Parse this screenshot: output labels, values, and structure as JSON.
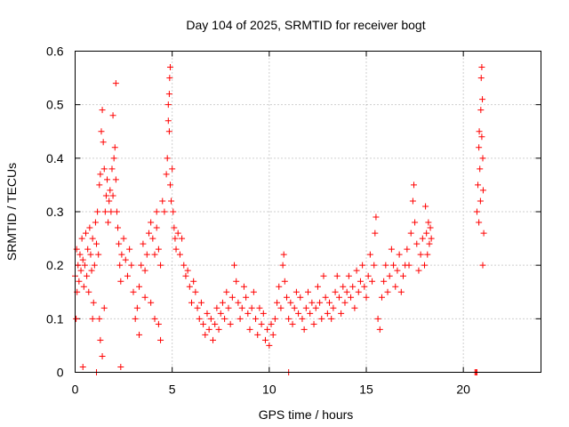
{
  "chart_data": {
    "type": "scatter",
    "title": "Day 104 of 2025, SRMTID for receiver bogt",
    "xlabel": "GPS time / hours",
    "ylabel": "SRMTID / TECUs",
    "xlim": [
      0,
      24
    ],
    "ylim": [
      0,
      0.6
    ],
    "x_ticks": [
      0,
      5,
      10,
      15,
      20
    ],
    "y_ticks": [
      0,
      0.1,
      0.2,
      0.3,
      0.4,
      0.5,
      0.6
    ],
    "x_tick_labels": [
      "0",
      "5",
      "10",
      "15",
      "20"
    ],
    "y_tick_labels": [
      "0",
      "0.1",
      "0.2",
      "0.3",
      "0.4",
      "0.5",
      "0.6"
    ],
    "grid": true,
    "marker": "plus",
    "series_color": "#ff0000",
    "series": [
      {
        "name": "SRMTID",
        "points": [
          [
            0.0,
            0.18
          ],
          [
            0.05,
            0.1
          ],
          [
            0.08,
            0.23
          ],
          [
            0.1,
            0.15
          ],
          [
            0.15,
            0.2
          ],
          [
            0.2,
            0.17
          ],
          [
            0.25,
            0.22
          ],
          [
            0.3,
            0.19
          ],
          [
            0.35,
            0.25
          ],
          [
            0.4,
            0.21
          ],
          [
            0.45,
            0.16
          ],
          [
            0.5,
            0.2
          ],
          [
            0.55,
            0.26
          ],
          [
            0.6,
            0.18
          ],
          [
            0.65,
            0.23
          ],
          [
            0.7,
            0.15
          ],
          [
            0.75,
            0.27
          ],
          [
            0.8,
            0.22
          ],
          [
            0.85,
            0.19
          ],
          [
            0.9,
            0.25
          ],
          [
            0.95,
            0.13
          ],
          [
            1.0,
            0.2
          ],
          [
            1.05,
            0.28
          ],
          [
            1.1,
            0.24
          ],
          [
            1.15,
            0.3
          ],
          [
            1.2,
            0.22
          ],
          [
            1.25,
            0.35
          ],
          [
            1.3,
            0.37
          ],
          [
            1.35,
            0.45
          ],
          [
            1.4,
            0.49
          ],
          [
            1.45,
            0.43
          ],
          [
            1.5,
            0.38
          ],
          [
            1.55,
            0.3
          ],
          [
            1.6,
            0.33
          ],
          [
            1.65,
            0.36
          ],
          [
            1.7,
            0.28
          ],
          [
            1.75,
            0.32
          ],
          [
            1.8,
            0.34
          ],
          [
            1.85,
            0.3
          ],
          [
            1.9,
            0.38
          ],
          [
            1.95,
            0.33
          ],
          [
            2.0,
            0.4
          ],
          [
            2.05,
            0.42
          ],
          [
            2.1,
            0.36
          ],
          [
            2.15,
            0.3
          ],
          [
            2.2,
            0.27
          ],
          [
            2.25,
            0.24
          ],
          [
            2.3,
            0.2
          ],
          [
            2.35,
            0.17
          ],
          [
            2.4,
            0.22
          ],
          [
            2.1,
            0.54
          ],
          [
            1.95,
            0.48
          ],
          [
            1.25,
            0.1
          ],
          [
            1.3,
            0.06
          ],
          [
            1.4,
            0.03
          ],
          [
            1.1,
            0.0
          ],
          [
            0.4,
            0.01
          ],
          [
            2.35,
            0.01
          ],
          [
            0.9,
            0.1
          ],
          [
            1.5,
            0.12
          ],
          [
            2.5,
            0.25
          ],
          [
            2.6,
            0.21
          ],
          [
            2.7,
            0.18
          ],
          [
            2.8,
            0.23
          ],
          [
            2.9,
            0.2
          ],
          [
            3.0,
            0.15
          ],
          [
            3.1,
            0.1
          ],
          [
            3.2,
            0.12
          ],
          [
            3.3,
            0.16
          ],
          [
            3.4,
            0.2
          ],
          [
            3.5,
            0.24
          ],
          [
            3.6,
            0.19
          ],
          [
            3.7,
            0.22
          ],
          [
            3.8,
            0.26
          ],
          [
            3.9,
            0.28
          ],
          [
            4.0,
            0.25
          ],
          [
            4.1,
            0.22
          ],
          [
            4.2,
            0.27
          ],
          [
            4.3,
            0.23
          ],
          [
            4.4,
            0.2
          ],
          [
            3.3,
            0.07
          ],
          [
            3.6,
            0.14
          ],
          [
            3.9,
            0.13
          ],
          [
            4.1,
            0.1
          ],
          [
            4.3,
            0.09
          ],
          [
            4.4,
            0.06
          ],
          [
            4.2,
            0.3
          ],
          [
            4.5,
            0.32
          ],
          [
            4.6,
            0.3
          ],
          [
            4.7,
            0.37
          ],
          [
            4.75,
            0.4
          ],
          [
            4.8,
            0.47
          ],
          [
            4.85,
            0.52
          ],
          [
            4.87,
            0.55
          ],
          [
            4.9,
            0.57
          ],
          [
            4.8,
            0.5
          ],
          [
            4.85,
            0.45
          ],
          [
            4.9,
            0.35
          ],
          [
            4.95,
            0.32
          ],
          [
            5.0,
            0.38
          ],
          [
            5.05,
            0.3
          ],
          [
            5.1,
            0.27
          ],
          [
            5.15,
            0.25
          ],
          [
            5.2,
            0.23
          ],
          [
            5.3,
            0.26
          ],
          [
            5.4,
            0.22
          ],
          [
            5.5,
            0.25
          ],
          [
            5.6,
            0.2
          ],
          [
            5.7,
            0.18
          ],
          [
            5.8,
            0.19
          ],
          [
            5.9,
            0.16
          ],
          [
            6.0,
            0.13
          ],
          [
            6.1,
            0.17
          ],
          [
            6.2,
            0.15
          ],
          [
            6.3,
            0.12
          ],
          [
            6.4,
            0.1
          ],
          [
            6.5,
            0.13
          ],
          [
            6.6,
            0.09
          ],
          [
            6.7,
            0.07
          ],
          [
            6.8,
            0.11
          ],
          [
            6.9,
            0.08
          ],
          [
            7.0,
            0.1
          ],
          [
            7.1,
            0.06
          ],
          [
            7.2,
            0.09
          ],
          [
            7.3,
            0.12
          ],
          [
            7.4,
            0.08
          ],
          [
            7.5,
            0.11
          ],
          [
            7.6,
            0.13
          ],
          [
            7.7,
            0.1
          ],
          [
            7.8,
            0.15
          ],
          [
            7.9,
            0.12
          ],
          [
            8.0,
            0.09
          ],
          [
            8.1,
            0.14
          ],
          [
            8.2,
            0.2
          ],
          [
            8.3,
            0.17
          ],
          [
            8.4,
            0.13
          ],
          [
            8.5,
            0.1
          ],
          [
            8.6,
            0.12
          ],
          [
            8.7,
            0.16
          ],
          [
            8.8,
            0.14
          ],
          [
            8.9,
            0.11
          ],
          [
            9.0,
            0.08
          ],
          [
            9.1,
            0.12
          ],
          [
            9.2,
            0.15
          ],
          [
            9.3,
            0.1
          ],
          [
            9.4,
            0.07
          ],
          [
            9.5,
            0.12
          ],
          [
            9.6,
            0.09
          ],
          [
            9.7,
            0.11
          ],
          [
            9.8,
            0.06
          ],
          [
            9.9,
            0.08
          ],
          [
            10.0,
            0.05
          ],
          [
            10.1,
            0.09
          ],
          [
            10.2,
            0.07
          ],
          [
            10.3,
            0.1
          ],
          [
            10.4,
            0.13
          ],
          [
            10.5,
            0.16
          ],
          [
            10.6,
            0.12
          ],
          [
            10.7,
            0.2
          ],
          [
            10.8,
            0.17
          ],
          [
            10.75,
            0.22
          ],
          [
            10.9,
            0.14
          ],
          [
            11.0,
            0.1
          ],
          [
            11.1,
            0.13
          ],
          [
            11.2,
            0.09
          ],
          [
            11.3,
            0.12
          ],
          [
            11.4,
            0.15
          ],
          [
            11.5,
            0.11
          ],
          [
            11.6,
            0.14
          ],
          [
            11.7,
            0.1
          ],
          [
            11.8,
            0.08
          ],
          [
            11.9,
            0.12
          ],
          [
            12.0,
            0.15
          ],
          [
            12.1,
            0.11
          ],
          [
            12.2,
            0.13
          ],
          [
            12.3,
            0.09
          ],
          [
            12.4,
            0.12
          ],
          [
            12.5,
            0.16
          ],
          [
            12.6,
            0.13
          ],
          [
            12.7,
            0.1
          ],
          [
            12.8,
            0.18
          ],
          [
            12.9,
            0.14
          ],
          [
            13.0,
            0.11
          ],
          [
            13.1,
            0.13
          ],
          [
            13.2,
            0.1
          ],
          [
            13.3,
            0.12
          ],
          [
            13.4,
            0.15
          ],
          [
            13.5,
            0.18
          ],
          [
            13.6,
            0.14
          ],
          [
            13.7,
            0.11
          ],
          [
            13.8,
            0.16
          ],
          [
            13.9,
            0.13
          ],
          [
            14.0,
            0.15
          ],
          [
            14.1,
            0.18
          ],
          [
            14.2,
            0.14
          ],
          [
            14.3,
            0.16
          ],
          [
            14.4,
            0.12
          ],
          [
            14.5,
            0.19
          ],
          [
            14.6,
            0.15
          ],
          [
            14.7,
            0.17
          ],
          [
            14.8,
            0.2
          ],
          [
            14.9,
            0.16
          ],
          [
            15.0,
            0.14
          ],
          [
            15.1,
            0.18
          ],
          [
            15.2,
            0.22
          ],
          [
            15.3,
            0.17
          ],
          [
            15.4,
            0.2
          ],
          [
            15.5,
            0.29
          ],
          [
            15.45,
            0.26
          ],
          [
            15.6,
            0.1
          ],
          [
            15.7,
            0.08
          ],
          [
            15.8,
            0.14
          ],
          [
            15.9,
            0.17
          ],
          [
            16.0,
            0.2
          ],
          [
            16.1,
            0.15
          ],
          [
            16.2,
            0.18
          ],
          [
            16.3,
            0.23
          ],
          [
            16.4,
            0.2
          ],
          [
            16.5,
            0.16
          ],
          [
            16.6,
            0.19
          ],
          [
            16.7,
            0.22
          ],
          [
            16.8,
            0.15
          ],
          [
            16.9,
            0.18
          ],
          [
            17.0,
            0.2
          ],
          [
            17.1,
            0.23
          ],
          [
            17.2,
            0.2
          ],
          [
            17.3,
            0.26
          ],
          [
            17.4,
            0.32
          ],
          [
            17.45,
            0.35
          ],
          [
            17.5,
            0.28
          ],
          [
            17.6,
            0.24
          ],
          [
            17.7,
            0.19
          ],
          [
            17.8,
            0.22
          ],
          [
            17.9,
            0.25
          ],
          [
            18.0,
            0.2
          ],
          [
            18.05,
            0.31
          ],
          [
            18.1,
            0.26
          ],
          [
            18.15,
            0.22
          ],
          [
            18.2,
            0.28
          ],
          [
            18.25,
            0.24
          ],
          [
            18.3,
            0.27
          ],
          [
            18.35,
            0.25
          ],
          [
            20.6,
            0.0
          ],
          [
            20.7,
            0.0
          ],
          [
            11.0,
            0.0
          ],
          [
            20.65,
            0.0
          ],
          [
            20.7,
            0.3
          ],
          [
            20.75,
            0.35
          ],
          [
            20.8,
            0.42
          ],
          [
            20.82,
            0.45
          ],
          [
            20.85,
            0.38
          ],
          [
            20.88,
            0.32
          ],
          [
            20.9,
            0.49
          ],
          [
            20.92,
            0.55
          ],
          [
            20.95,
            0.57
          ],
          [
            20.98,
            0.51
          ],
          [
            21.0,
            0.4
          ],
          [
            21.02,
            0.34
          ],
          [
            21.05,
            0.26
          ],
          [
            21.0,
            0.2
          ],
          [
            20.8,
            0.28
          ],
          [
            20.95,
            0.44
          ]
        ]
      }
    ]
  }
}
